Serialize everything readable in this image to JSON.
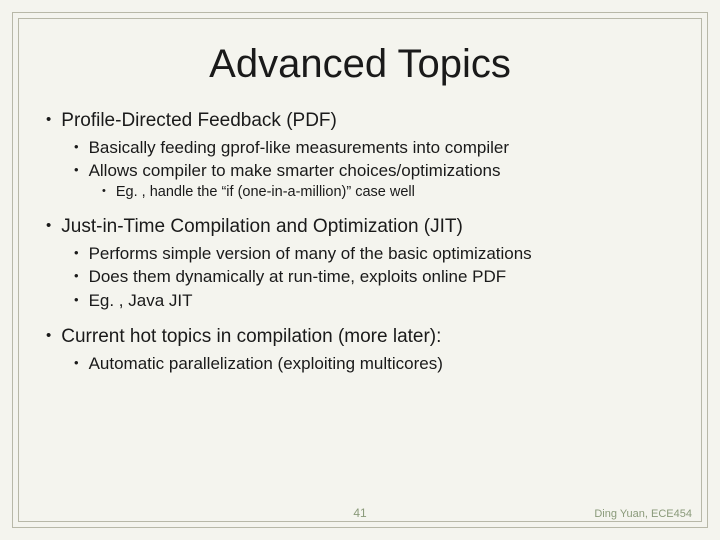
{
  "title": "Advanced Topics",
  "bullets": {
    "l1": [
      {
        "text": "Profile-Directed Feedback (PDF)",
        "l2": [
          {
            "text": "Basically feeding gprof-like measurements into compiler"
          },
          {
            "text": "Allows compiler to make smarter choices/optimizations",
            "l3": [
              {
                "text": "Eg. , handle the “if (one-in-a-million)” case well"
              }
            ]
          }
        ]
      },
      {
        "text": "Just-in-Time Compilation and Optimization (JIT)",
        "l2": [
          {
            "text": "Performs simple version of many of the basic optimizations"
          },
          {
            "text": "Does them dynamically at run-time, exploits online PDF"
          },
          {
            "text": "Eg. , Java JIT"
          }
        ]
      },
      {
        "text": "Current hot topics in compilation (more later):",
        "l2": [
          {
            "text": "Automatic parallelization (exploiting multicores)"
          }
        ]
      }
    ]
  },
  "slide_number": "41",
  "footer_credit": "Ding Yuan, ECE454",
  "colors": {
    "background": "#f4f4ee",
    "border": "#b8b8a8",
    "text": "#1a1a1a",
    "muted": "#8a9a7a"
  }
}
